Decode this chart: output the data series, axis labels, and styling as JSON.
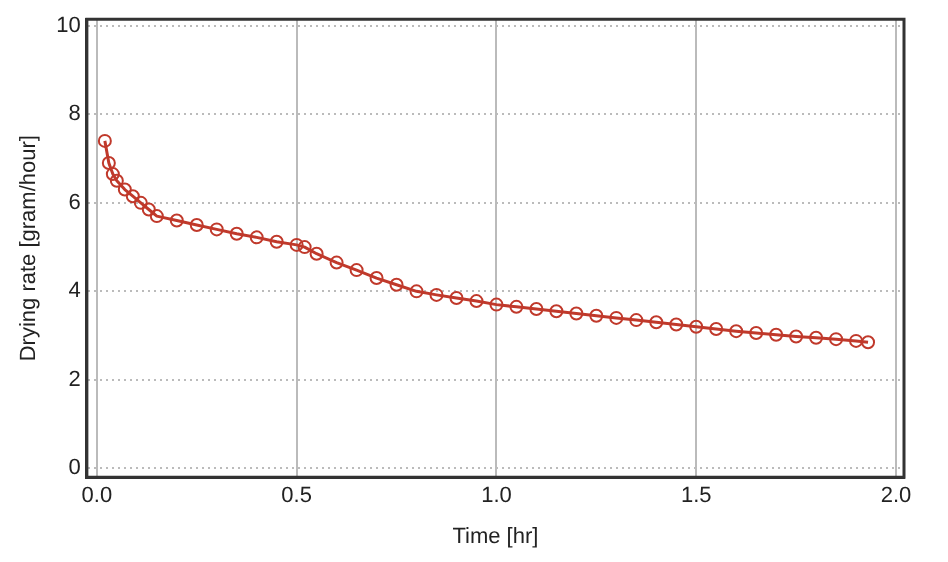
{
  "chart_data": {
    "type": "line",
    "xlabel": "Time [hr]",
    "ylabel": "Drying rate [gram/hour]",
    "xlim": [
      -0.025,
      2.02
    ],
    "ylim": [
      -0.2,
      10.15
    ],
    "xticks": [
      {
        "value": 0,
        "label": "0.0"
      },
      {
        "value": 0.5,
        "label": "0.5"
      },
      {
        "value": 1,
        "label": "1.0"
      },
      {
        "value": 1.5,
        "label": "1.5"
      },
      {
        "value": 2,
        "label": "2.0"
      }
    ],
    "yticks": [
      0,
      2,
      4,
      6,
      8,
      10
    ],
    "grid": true,
    "legend": false,
    "marker": "circle",
    "line_style": "solid",
    "series": [
      {
        "color": "#c0392b",
        "x": [
          0.02,
          0.03,
          0.04,
          0.05,
          0.07,
          0.09,
          0.11,
          0.13,
          0.15,
          0.2,
          0.25,
          0.3,
          0.35,
          0.4,
          0.45,
          0.5,
          0.52,
          0.55,
          0.6,
          0.65,
          0.7,
          0.75,
          0.8,
          0.85,
          0.9,
          0.95,
          1.0,
          1.05,
          1.1,
          1.15,
          1.2,
          1.25,
          1.3,
          1.35,
          1.4,
          1.45,
          1.5,
          1.55,
          1.6,
          1.65,
          1.7,
          1.75,
          1.8,
          1.85,
          1.9,
          1.93
        ],
        "values": [
          7.4,
          6.9,
          6.65,
          6.5,
          6.3,
          6.15,
          6.0,
          5.85,
          5.7,
          5.6,
          5.5,
          5.4,
          5.3,
          5.22,
          5.12,
          5.05,
          5.0,
          4.85,
          4.65,
          4.48,
          4.3,
          4.15,
          4.0,
          3.92,
          3.85,
          3.78,
          3.7,
          3.65,
          3.6,
          3.55,
          3.5,
          3.45,
          3.4,
          3.35,
          3.3,
          3.25,
          3.2,
          3.15,
          3.1,
          3.06,
          3.02,
          2.98,
          2.95,
          2.92,
          2.88,
          2.85
        ]
      }
    ]
  }
}
